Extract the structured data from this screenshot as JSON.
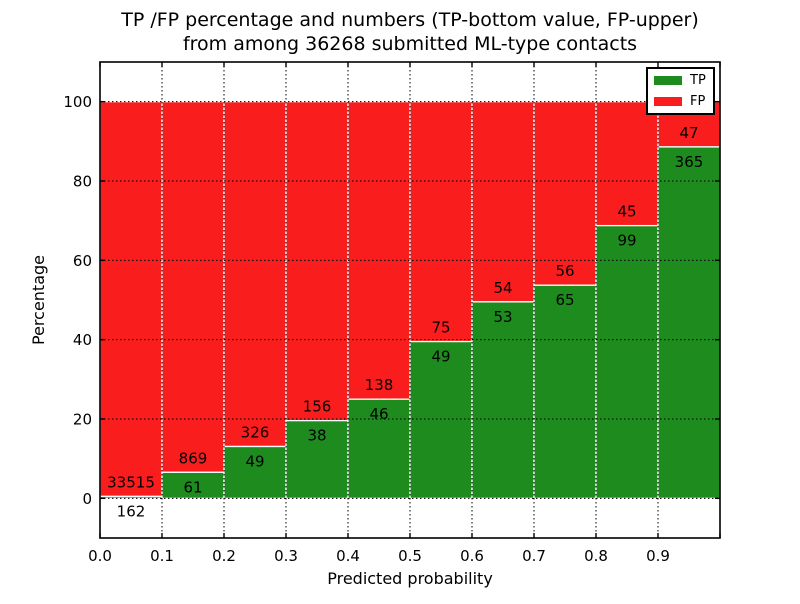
{
  "figure": {
    "title_line1": "TP /FP percentage and numbers (TP-bottom value, FP-upper)",
    "title_line2": "from among 36268 submitted ML-type contacts",
    "background_color": "#ffffff"
  },
  "axes": {
    "xlabel": "Predicted probability",
    "ylabel": "Percentage",
    "xtick_labels": [
      "0.0",
      "0.1",
      "0.2",
      "0.3",
      "0.4",
      "0.5",
      "0.6",
      "0.7",
      "0.8",
      "0.9"
    ],
    "ytick_labels": [
      "0",
      "20",
      "40",
      "60",
      "80",
      "100"
    ]
  },
  "legend": {
    "position": "upper right",
    "items": [
      {
        "label": "TP",
        "color": "#1e8b1e"
      },
      {
        "label": "FP",
        "color": "#f91d1d"
      }
    ]
  },
  "chart_data": {
    "type": "bar",
    "subtype": "stacked_percentage",
    "title": "TP /FP percentage and numbers (TP-bottom value, FP-upper) from among 36268 submitted ML-type contacts",
    "xlabel": "Predicted probability",
    "ylabel": "Percentage",
    "total_contacts": 36268,
    "x_bins": [
      0.0,
      0.1,
      0.2,
      0.3,
      0.4,
      0.5,
      0.6,
      0.7,
      0.8,
      0.9
    ],
    "bin_width": 0.1,
    "series": [
      {
        "name": "TP",
        "color": "#1e8b1e",
        "counts": [
          162,
          61,
          49,
          38,
          46,
          49,
          53,
          65,
          99,
          365
        ]
      },
      {
        "name": "FP",
        "color": "#f91d1d",
        "counts": [
          33515,
          869,
          326,
          156,
          138,
          75,
          54,
          56,
          45,
          47
        ]
      }
    ],
    "tp_percent": [
      0.48,
      6.56,
      13.07,
      19.59,
      25.0,
      39.52,
      49.53,
      53.72,
      68.75,
      88.59
    ],
    "xlim": [
      0.0,
      1.0
    ],
    "ylim": [
      -10,
      110
    ],
    "xticks": [
      0.0,
      0.1,
      0.2,
      0.3,
      0.4,
      0.5,
      0.6,
      0.7,
      0.8,
      0.9
    ],
    "yticks": [
      0,
      20,
      40,
      60,
      80,
      100
    ],
    "grid": "dotted black, both axes",
    "bar_edge_color": "#ffffff",
    "legend_position": "upper right"
  }
}
